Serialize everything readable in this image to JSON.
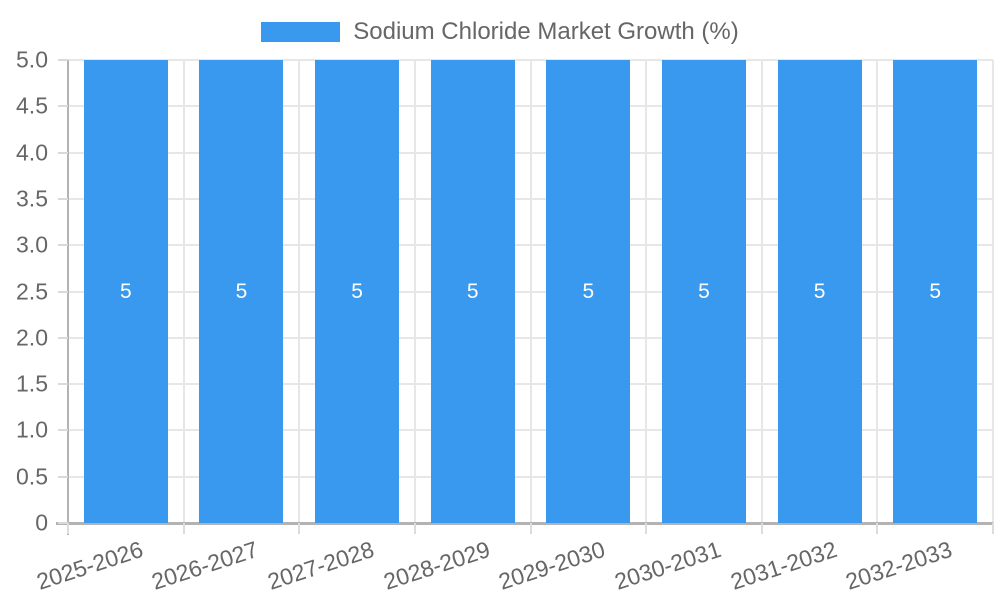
{
  "page": {
    "background": "#ffffff"
  },
  "chart_data": {
    "type": "bar",
    "title": "Sodium Chloride Market Growth (%)",
    "categories": [
      "2025-2026",
      "2026-2027",
      "2027-2028",
      "2028-2029",
      "2029-2030",
      "2030-2031",
      "2031-2032",
      "2032-2033"
    ],
    "series": [
      {
        "name": "Sodium Chloride Market Growth (%)",
        "values": [
          5,
          5,
          5,
          5,
          5,
          5,
          5,
          5
        ],
        "data_labels": [
          "5",
          "5",
          "5",
          "5",
          "5",
          "5",
          "5",
          "5"
        ],
        "color": "#3999ee"
      }
    ],
    "xlabel": "",
    "ylabel": "",
    "ylim": [
      0,
      5
    ],
    "yticks": [
      0,
      0.5,
      1,
      1.5,
      2,
      2.5,
      3,
      3.5,
      4,
      4.5,
      5
    ],
    "ytick_labels": [
      "0",
      "0.5",
      "1.0",
      "1.5",
      "2.0",
      "2.5",
      "3.0",
      "3.5",
      "4.0",
      "4.5",
      "5.0"
    ],
    "grid": true,
    "legend_position": "top",
    "colors": {
      "bar": "#3999ee",
      "grid": "#e7e7e7",
      "axis": "#b3b3b3",
      "tick_mark": "#d9d9d9",
      "tick_text": "#666666",
      "bar_label": "#ffffff"
    }
  }
}
